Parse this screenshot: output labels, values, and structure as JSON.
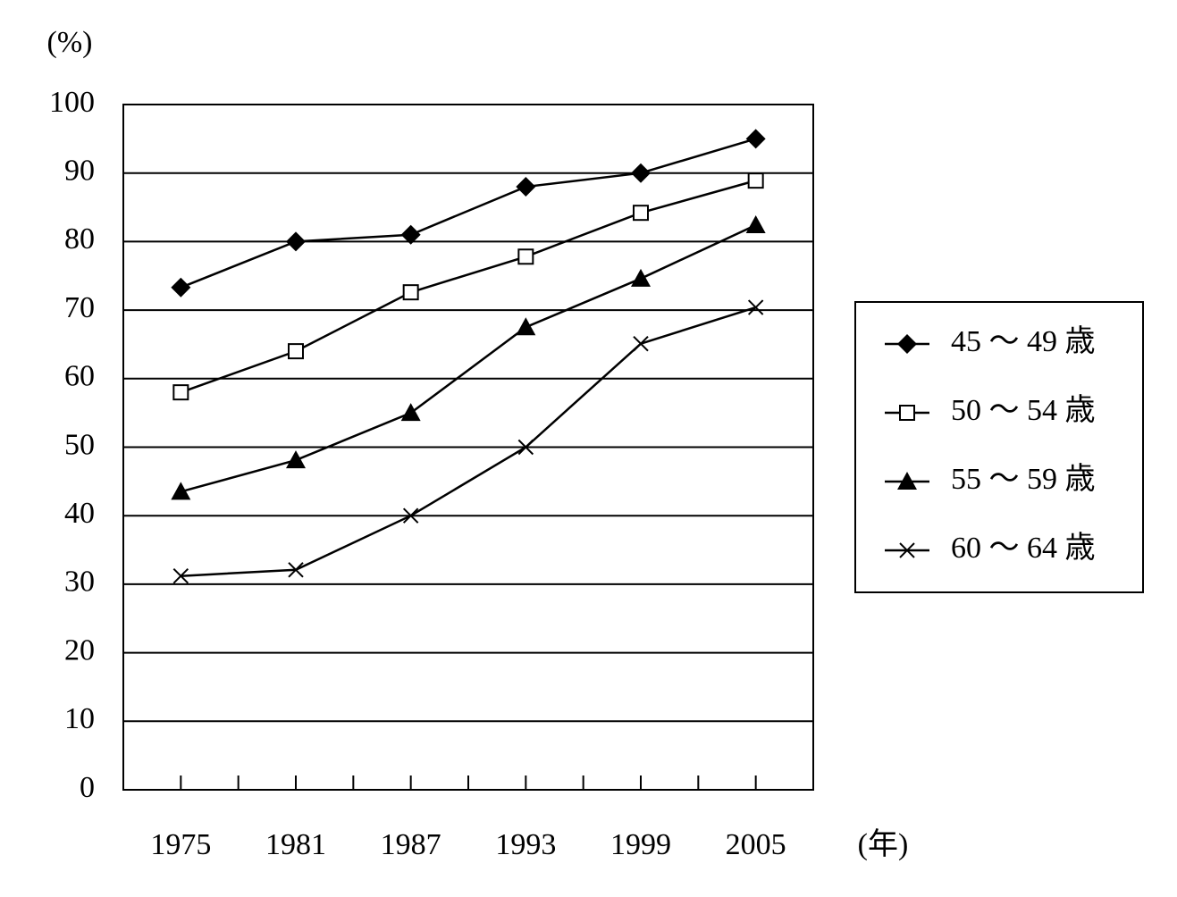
{
  "chart_data": {
    "type": "line",
    "y_label": "(%)",
    "x_label": "(年)",
    "categories": [
      "1975",
      "1981",
      "1987",
      "1993",
      "1999",
      "2005"
    ],
    "series": [
      {
        "name": "45 ～ 49 歳",
        "color": "#000000",
        "marker": "diamond",
        "values": [
          73.3,
          80,
          81,
          88,
          90,
          95
        ]
      },
      {
        "name": "50 ～ 54 歳",
        "color": "#000000",
        "marker": "square",
        "values": [
          58,
          64,
          72.6,
          77.8,
          84.2,
          88.9
        ]
      },
      {
        "name": "55 ～ 59 歳",
        "color": "#000000",
        "marker": "triangle",
        "values": [
          43.5,
          48.1,
          55,
          67.5,
          74.6,
          82.4
        ]
      },
      {
        "name": "60 ～ 64 歳",
        "color": "#000000",
        "marker": "cross",
        "values": [
          31.2,
          32.1,
          40,
          50,
          65.1,
          70.4
        ]
      }
    ],
    "ylim": [
      0,
      100
    ],
    "yticks": [
      0,
      10,
      20,
      30,
      40,
      50,
      60,
      70,
      80,
      90,
      100
    ],
    "grid": true,
    "legend": "right"
  }
}
